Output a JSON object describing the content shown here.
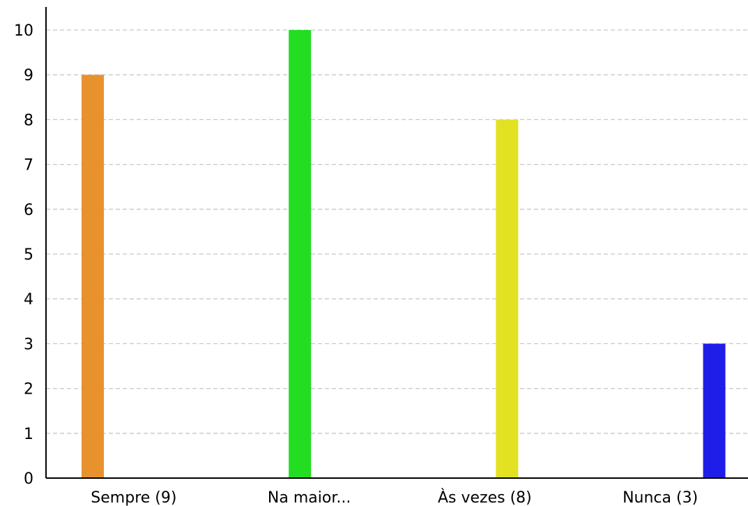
{
  "chart_data": {
    "type": "bar",
    "categories": [
      "Sempre (9)",
      "Na maior...",
      "Às vezes (8)",
      "Nunca (3)"
    ],
    "series": [
      {
        "values": [
          9,
          0,
          0,
          0
        ],
        "color": "#e8922e"
      },
      {
        "values": [
          0,
          10,
          0,
          0
        ],
        "color": "#22dd22"
      },
      {
        "values": [
          0,
          0,
          8,
          0
        ],
        "color": "#e2e222"
      },
      {
        "values": [
          0,
          0,
          0,
          3
        ],
        "color": "#1e1ee8"
      }
    ],
    "y_ticks": [
      "0",
      "1",
      "2",
      "3",
      "4",
      "5",
      "6",
      "7",
      "8",
      "9",
      "10"
    ],
    "ylim": [
      0,
      10.5
    ],
    "grid": true,
    "grid_style": "dashed",
    "legend": "none",
    "title": "",
    "xlabel": "",
    "ylabel": ""
  }
}
